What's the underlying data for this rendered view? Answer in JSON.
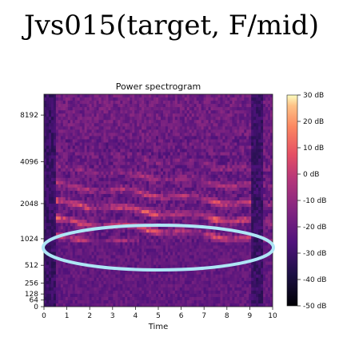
{
  "figure": {
    "title": "Jvs015(target, F/mid)"
  },
  "chart_data": {
    "type": "heatmap",
    "title": "Power spectrogram",
    "xlabel": "Time",
    "ylabel": "",
    "x_ticks": [
      "0",
      "1",
      "2",
      "3",
      "4",
      "5",
      "6",
      "7",
      "8",
      "9",
      "10"
    ],
    "xlim": [
      0,
      10
    ],
    "y_ticks": [
      "0",
      "64",
      "128",
      "256",
      "512",
      "1024",
      "2048",
      "4096",
      "8192"
    ],
    "y_scale": "log (mel)",
    "colorbar": {
      "label_ticks": [
        "30 dB",
        "20 dB",
        "10 dB",
        "0 dB",
        "-10 dB",
        "-20 dB",
        "-30 dB",
        "-40 dB",
        "-50 dB"
      ],
      "range_db": [
        -50,
        30
      ],
      "colormap": "magma"
    },
    "annotation": {
      "shape": "ellipse",
      "color": "#aee6f5",
      "x_range": [
        0,
        10
      ],
      "y_range_hz": [
        100,
        260
      ]
    },
    "silent_regions_time": [
      [
        0,
        0.5
      ],
      [
        9.1,
        9.6
      ]
    ]
  }
}
